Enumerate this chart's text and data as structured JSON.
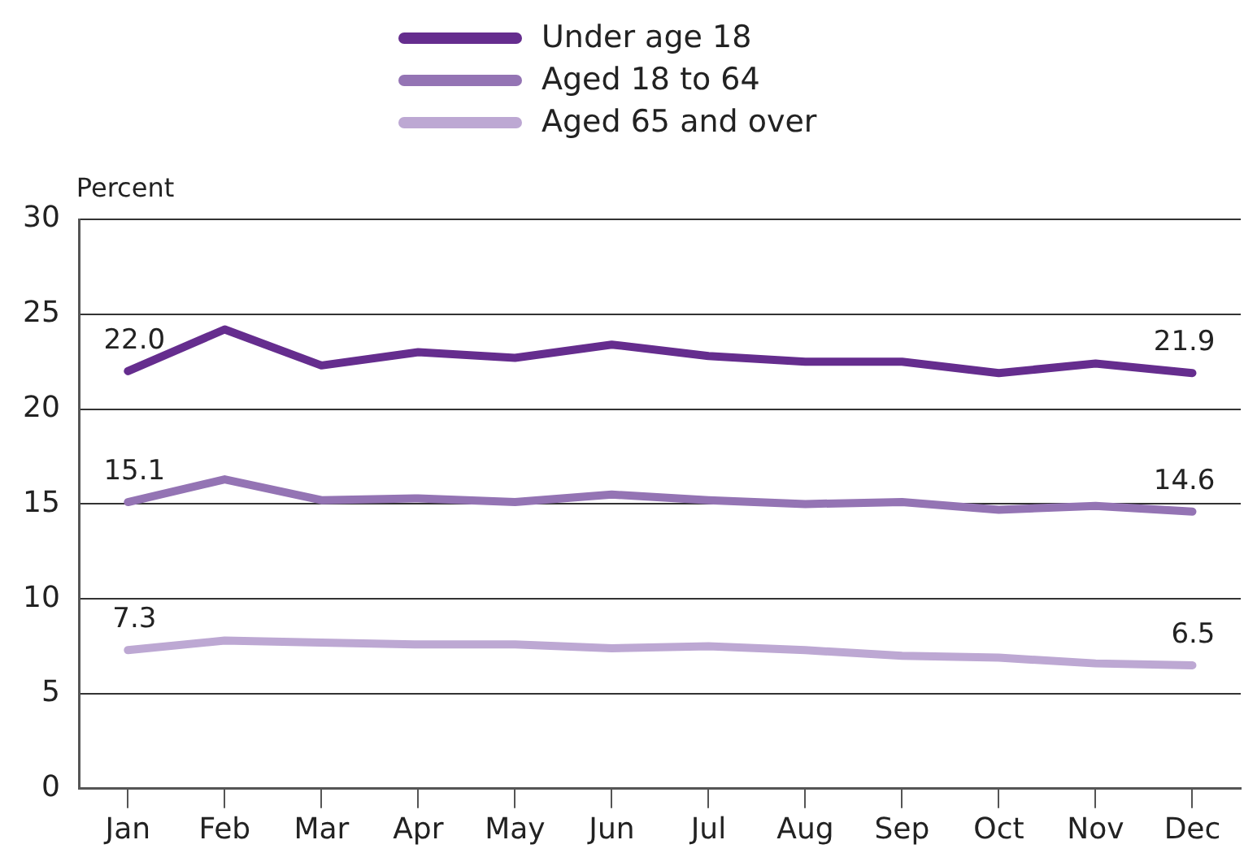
{
  "chart_data": {
    "type": "line",
    "ylabel": "Percent",
    "categories": [
      "Jan",
      "Feb",
      "Mar",
      "Apr",
      "May",
      "Jun",
      "Jul",
      "Aug",
      "Sep",
      "Oct",
      "Nov",
      "Dec"
    ],
    "series": [
      {
        "name": "Under age 18",
        "color": "#652d8e",
        "values": [
          22.0,
          24.2,
          22.3,
          23.0,
          22.7,
          23.4,
          22.8,
          22.5,
          22.5,
          21.9,
          22.4,
          21.9
        ],
        "value_labels": [
          "22.0",
          null,
          null,
          null,
          null,
          null,
          null,
          null,
          null,
          null,
          null,
          "21.9"
        ]
      },
      {
        "name": "Aged 18 to 64",
        "color": "#9474b4",
        "values": [
          15.1,
          16.3,
          15.2,
          15.3,
          15.1,
          15.5,
          15.2,
          15.0,
          15.1,
          14.7,
          14.9,
          14.6
        ],
        "value_labels": [
          "15.1",
          null,
          null,
          null,
          null,
          null,
          null,
          null,
          null,
          null,
          null,
          "14.6"
        ]
      },
      {
        "name": "Aged 65 and over",
        "color": "#bda8d3",
        "values": [
          7.3,
          7.8,
          7.7,
          7.6,
          7.6,
          7.4,
          7.5,
          7.3,
          7.0,
          6.9,
          6.6,
          6.5
        ],
        "value_labels": [
          "7.3",
          null,
          null,
          null,
          null,
          null,
          null,
          null,
          null,
          null,
          null,
          "6.5"
        ]
      }
    ],
    "ylim": [
      0,
      30
    ],
    "yticks": [
      0,
      5,
      10,
      15,
      20,
      25,
      30
    ],
    "grid": "y",
    "legend": "top",
    "marker": "none",
    "line_style": "solid"
  }
}
